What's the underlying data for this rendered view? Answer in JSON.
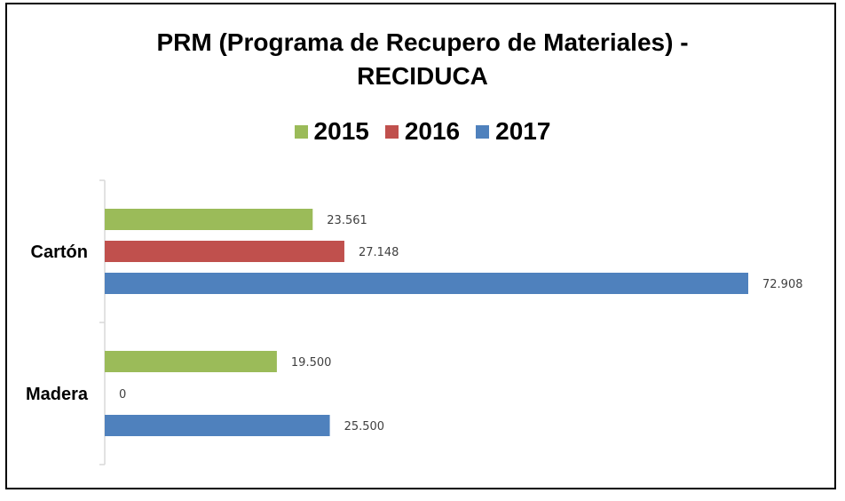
{
  "chart_data": {
    "type": "bar",
    "orientation": "horizontal",
    "title": "PRM (Programa de Recupero de Materiales) - RECIDUCA",
    "title_lines": [
      "PRM (Programa de Recupero de Materiales) -",
      "RECIDUCA"
    ],
    "categories": [
      "Madera",
      "Cartón"
    ],
    "series": [
      {
        "name": "2015",
        "color": "#9BBB59",
        "values": [
          19500,
          23561
        ],
        "labels": [
          "19.500",
          "23.561"
        ]
      },
      {
        "name": "2016",
        "color": "#C0504D",
        "values": [
          0,
          27148
        ],
        "labels": [
          "0",
          "27.148"
        ]
      },
      {
        "name": "2017",
        "color": "#4F81BD",
        "values": [
          25500,
          72908
        ],
        "labels": [
          "25.500",
          "72.908"
        ]
      }
    ],
    "xlim": [
      0,
      72908
    ],
    "legend": "top",
    "grid": false,
    "xlabel": "",
    "ylabel": ""
  }
}
